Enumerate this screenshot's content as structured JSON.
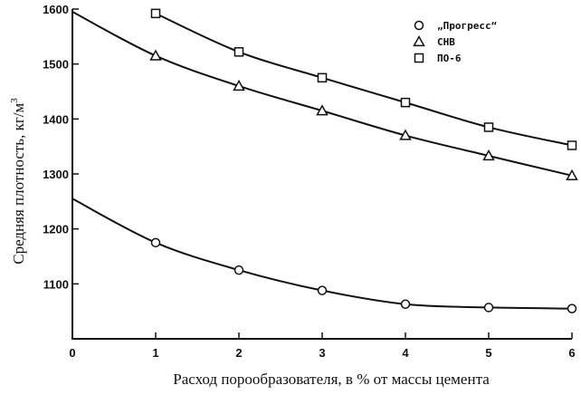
{
  "chart_data": {
    "type": "line",
    "title": "",
    "xlabel": "Расход порообразователя, в % от массы цемента",
    "ylabel": "Средняя плотность, кг/м",
    "ylabel_superscript": "3",
    "xlim": [
      0,
      6
    ],
    "ylim": [
      1000,
      1600
    ],
    "x_ticks": [
      0,
      1,
      2,
      3,
      4,
      5,
      6
    ],
    "x_tick_labels": [
      "0",
      "1",
      "2",
      "3",
      "4",
      "5",
      "6"
    ],
    "y_ticks": [
      1100,
      1200,
      1300,
      1400,
      1500,
      1600
    ],
    "y_tick_labels": [
      "1100",
      "1200",
      "1300",
      "1400",
      "1500",
      "1600"
    ],
    "grid": false,
    "legend_position": "top-right",
    "series": [
      {
        "name": "„Прогресс“",
        "marker": "circle",
        "x": [
          1,
          2,
          3,
          4,
          5,
          6
        ],
        "y": [
          1175,
          1125,
          1088,
          1063,
          1057,
          1055
        ],
        "curve_start": {
          "x": 0,
          "y": 1255
        }
      },
      {
        "name": "СНВ",
        "marker": "triangle",
        "x": [
          1,
          2,
          3,
          4,
          5,
          6
        ],
        "y": [
          1515,
          1460,
          1415,
          1370,
          1333,
          1297
        ],
        "curve_start": {
          "x": 0,
          "y": 1595
        }
      },
      {
        "name": "ПО-6",
        "marker": "square",
        "x": [
          1,
          2,
          3,
          4,
          5,
          6
        ],
        "y": [
          1592,
          1522,
          1475,
          1430,
          1385,
          1352
        ],
        "curve_start": null
      }
    ]
  }
}
